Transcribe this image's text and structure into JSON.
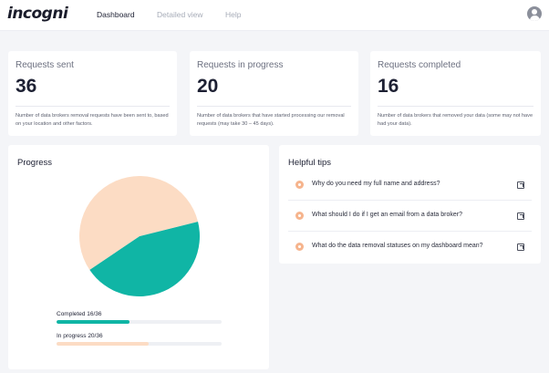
{
  "header": {
    "logo_text": "incogni",
    "nav": [
      "Dashboard",
      "Detailed view",
      "Help"
    ],
    "avatar_icon": "user-avatar-icon"
  },
  "stats": [
    {
      "title": "Requests sent",
      "value": "36",
      "description": "Number of data brokers removal requests have been sent to, based on your location and other factors."
    },
    {
      "title": "Requests in progress",
      "value": "20",
      "description": "Number of data brokers that have started processing our removal requests (may take 30 – 45 days)."
    },
    {
      "title": "Requests completed",
      "value": "16",
      "description": "Number of data brokers that removed your data (some may not have had your data)."
    }
  ],
  "progress": {
    "title": "Progress",
    "completed_label": "Completed 16/36",
    "in_progress_label": "In progress 20/36",
    "completed_fraction": 0.444,
    "in_progress_fraction": 0.556
  },
  "chart_data": {
    "type": "pie",
    "categories": [
      "Completed",
      "In progress"
    ],
    "values": [
      16,
      20
    ],
    "colors": [
      "#10b5a5",
      "#fcdcc4"
    ]
  },
  "tips": {
    "title": "Helpful tips",
    "items": [
      "Why do you need my full name and address?",
      "What should I do if I get an email from a data broker?",
      "What do the data removal statuses on my dashboard mean?"
    ]
  },
  "colors": {
    "accent": "#10b5a5",
    "progress_accent": "#fcdcc4",
    "tip_dot": "#f6b48d"
  }
}
